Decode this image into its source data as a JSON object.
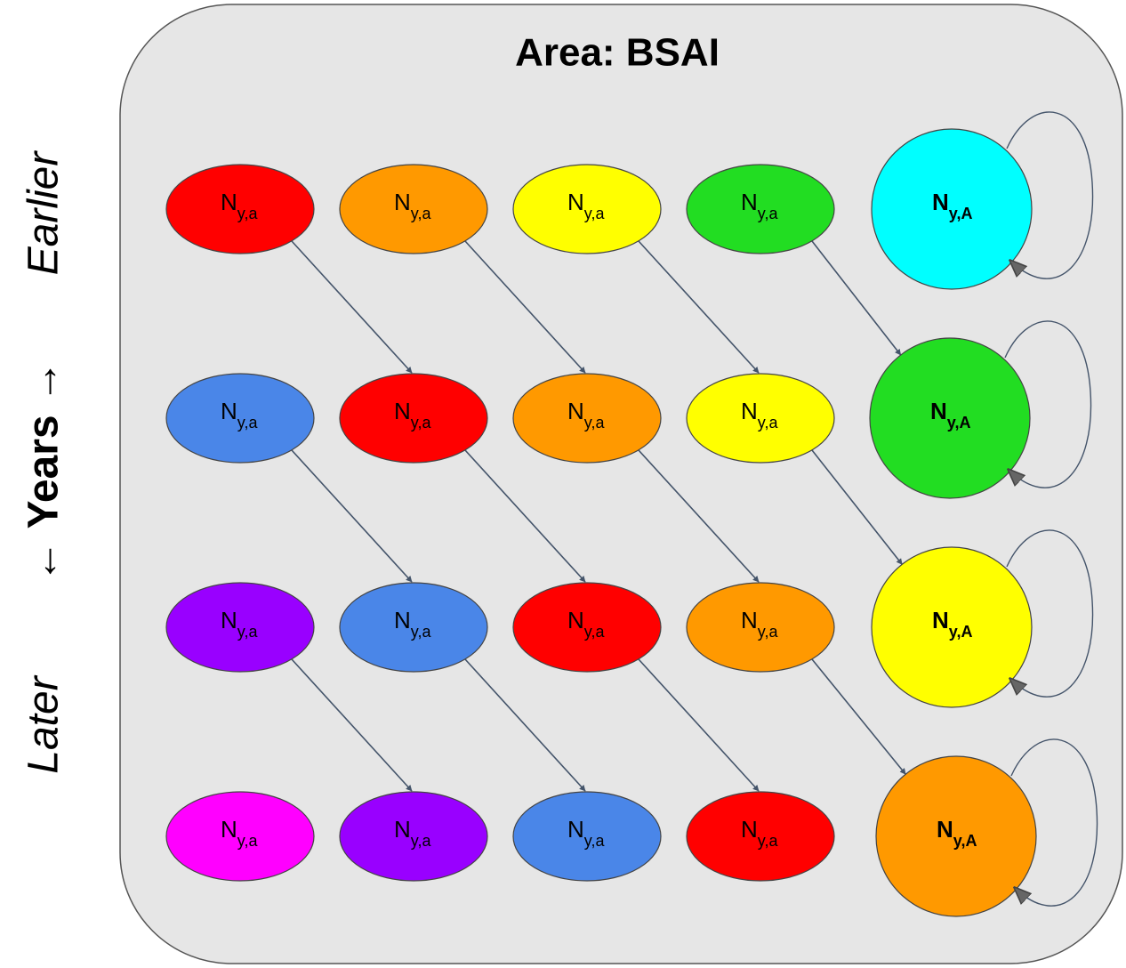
{
  "title": "Area: BSAI",
  "side_labels": {
    "earlier": "Earlier",
    "years": "← Years →",
    "later": "Later"
  },
  "rows": [
    [
      {
        "label": "N",
        "sub": "y,a",
        "color": "#ff0000"
      },
      {
        "label": "N",
        "sub": "y,a",
        "color": "#ff9900"
      },
      {
        "label": "N",
        "sub": "y,a",
        "color": "#ffff00"
      },
      {
        "label": "N",
        "sub": "y,a",
        "color": "#22dd22"
      },
      {
        "label": "N",
        "sub": "y,A",
        "color": "#00ffff"
      }
    ],
    [
      {
        "label": "N",
        "sub": "y,a",
        "color": "#4a86e8"
      },
      {
        "label": "N",
        "sub": "y,a",
        "color": "#ff0000"
      },
      {
        "label": "N",
        "sub": "y,a",
        "color": "#ff9900"
      },
      {
        "label": "N",
        "sub": "y,a",
        "color": "#ffff00"
      },
      {
        "label": "N",
        "sub": "y,A",
        "color": "#22dd22"
      }
    ],
    [
      {
        "label": "N",
        "sub": "y,a",
        "color": "#9900ff"
      },
      {
        "label": "N",
        "sub": "y,a",
        "color": "#4a86e8"
      },
      {
        "label": "N",
        "sub": "y,a",
        "color": "#ff0000"
      },
      {
        "label": "N",
        "sub": "y,a",
        "color": "#ff9900"
      },
      {
        "label": "N",
        "sub": "y,A",
        "color": "#ffff00"
      }
    ],
    [
      {
        "label": "N",
        "sub": "y,a",
        "color": "#ff00ff"
      },
      {
        "label": "N",
        "sub": "y,a",
        "color": "#9900ff"
      },
      {
        "label": "N",
        "sub": "y,a",
        "color": "#4a86e8"
      },
      {
        "label": "N",
        "sub": "y,a",
        "color": "#ff0000"
      },
      {
        "label": "N",
        "sub": "y,A",
        "color": "#ff9900"
      }
    ]
  ]
}
